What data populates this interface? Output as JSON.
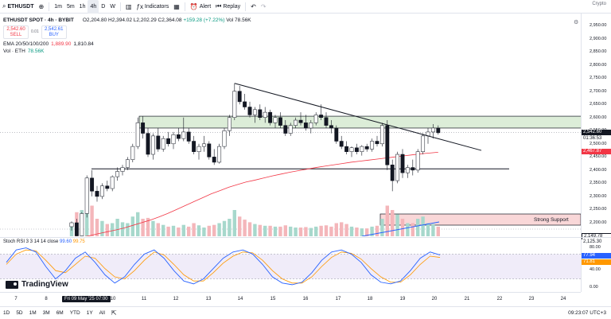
{
  "toolbar": {
    "symbol": "ETHUSDT",
    "intervals": [
      "1m",
      "5m",
      "1h",
      "4h",
      "D",
      "W"
    ],
    "active_interval": "4h",
    "indicators_label": "Indicators",
    "alert_label": "Alert",
    "replay_label": "Replay",
    "brand_right": "Crypto"
  },
  "legend": {
    "title": "ETHUSDT SPOT · 4h · BYBIT",
    "ohlc": "O2,204.80 H2,394.02 L2,202.29 C2,364.08",
    "change": "+159.28 (+7.22%)",
    "volume": "Vol 78.56K",
    "sell_price": "2,542.60",
    "sell_label": "SELL",
    "spread": "0.01",
    "buy_price": "2,542.61",
    "buy_label": "BUY",
    "ema_label": "EMA 20/50/100/200",
    "ema_value_1": "1,889.90",
    "ema_value_2": "1,810.84",
    "vol_label": "Vol · ETH",
    "vol_value": "78.56K"
  },
  "annotations": {
    "strong_support": "Strong Support"
  },
  "price_axis": {
    "ticks": [
      "2,950.00",
      "2,900.00",
      "2,850.00",
      "2,800.00",
      "2,750.00",
      "2,700.00",
      "2,650.00",
      "2,600.00",
      "2,550.00",
      "2,500.00",
      "2,450.00",
      "2,400.00",
      "2,350.00",
      "2,300.00",
      "2,250.00",
      "2,200.00"
    ],
    "last_price": "2,542.60",
    "countdown": "01:36:53",
    "ema_badge": "2,467.87",
    "support_badge": "2,149.78",
    "support_badge_2": "2,125.30"
  },
  "stoch": {
    "legend": "Stoch RSI 3 3 14 14 close",
    "k_value": "99.60",
    "d_value": "99.75",
    "ticks": [
      "80.00",
      "40.00",
      "0.00"
    ],
    "k_badge": "77.94",
    "d_badge": "71.81"
  },
  "time_axis": {
    "labels": [
      "7",
      "8",
      "10",
      "11",
      "12",
      "13",
      "14",
      "15",
      "16",
      "17",
      "18",
      "19",
      "20",
      "21",
      "22",
      "23",
      "24"
    ],
    "crosshair": "Fri 09 May '25  07:00"
  },
  "bottombar": {
    "ranges": [
      "1D",
      "5D",
      "1M",
      "3M",
      "6M",
      "YTD",
      "1Y",
      "All"
    ],
    "clock": "09:23:07 UTC+3"
  },
  "logo_text": "TradingView",
  "colors": {
    "up": "#089981",
    "down": "#f23645",
    "zone_fill": "#dcedd8",
    "support_fill": "#f9d7d8",
    "ema": "#f23645",
    "stoch_k": "#2962ff",
    "stoch_d": "#ff9800"
  },
  "chart_data": {
    "type": "candlestick",
    "ylim": [
      2120,
      2975
    ],
    "candles": [
      {
        "o": 2185,
        "h": 2205,
        "l": 2170,
        "c": 2200,
        "v": 30
      },
      {
        "o": 2200,
        "h": 2215,
        "l": 2140,
        "c": 2150,
        "v": 55
      },
      {
        "o": 2150,
        "h": 2240,
        "l": 2135,
        "c": 2235,
        "v": 60
      },
      {
        "o": 2235,
        "h": 2380,
        "l": 2220,
        "c": 2370,
        "v": 95
      },
      {
        "o": 2370,
        "h": 2400,
        "l": 2300,
        "c": 2320,
        "v": 70
      },
      {
        "o": 2320,
        "h": 2340,
        "l": 2280,
        "c": 2300,
        "v": 40
      },
      {
        "o": 2300,
        "h": 2350,
        "l": 2290,
        "c": 2340,
        "v": 35
      },
      {
        "o": 2340,
        "h": 2360,
        "l": 2320,
        "c": 2330,
        "v": 28
      },
      {
        "o": 2330,
        "h": 2380,
        "l": 2320,
        "c": 2375,
        "v": 30
      },
      {
        "o": 2375,
        "h": 2410,
        "l": 2360,
        "c": 2395,
        "v": 40
      },
      {
        "o": 2395,
        "h": 2420,
        "l": 2380,
        "c": 2410,
        "v": 32
      },
      {
        "o": 2410,
        "h": 2450,
        "l": 2400,
        "c": 2440,
        "v": 30
      },
      {
        "o": 2440,
        "h": 2500,
        "l": 2430,
        "c": 2490,
        "v": 45
      },
      {
        "o": 2490,
        "h": 2600,
        "l": 2480,
        "c": 2580,
        "v": 55
      },
      {
        "o": 2580,
        "h": 2605,
        "l": 2520,
        "c": 2540,
        "v": 40
      },
      {
        "o": 2540,
        "h": 2560,
        "l": 2450,
        "c": 2460,
        "v": 42
      },
      {
        "o": 2460,
        "h": 2540,
        "l": 2440,
        "c": 2530,
        "v": 35
      },
      {
        "o": 2530,
        "h": 2560,
        "l": 2470,
        "c": 2480,
        "v": 30
      },
      {
        "o": 2480,
        "h": 2530,
        "l": 2470,
        "c": 2520,
        "v": 26
      },
      {
        "o": 2520,
        "h": 2545,
        "l": 2490,
        "c": 2500,
        "v": 22
      },
      {
        "o": 2500,
        "h": 2545,
        "l": 2480,
        "c": 2535,
        "v": 24
      },
      {
        "o": 2535,
        "h": 2560,
        "l": 2510,
        "c": 2520,
        "v": 20
      },
      {
        "o": 2520,
        "h": 2600,
        "l": 2510,
        "c": 2545,
        "v": 26
      },
      {
        "o": 2545,
        "h": 2560,
        "l": 2500,
        "c": 2510,
        "v": 22
      },
      {
        "o": 2510,
        "h": 2530,
        "l": 2460,
        "c": 2470,
        "v": 30
      },
      {
        "o": 2470,
        "h": 2500,
        "l": 2440,
        "c": 2490,
        "v": 25
      },
      {
        "o": 2490,
        "h": 2530,
        "l": 2470,
        "c": 2500,
        "v": 20
      },
      {
        "o": 2500,
        "h": 2510,
        "l": 2440,
        "c": 2450,
        "v": 24
      },
      {
        "o": 2450,
        "h": 2480,
        "l": 2420,
        "c": 2430,
        "v": 26
      },
      {
        "o": 2430,
        "h": 2500,
        "l": 2425,
        "c": 2490,
        "v": 30
      },
      {
        "o": 2490,
        "h": 2560,
        "l": 2480,
        "c": 2550,
        "v": 35
      },
      {
        "o": 2550,
        "h": 2610,
        "l": 2530,
        "c": 2600,
        "v": 40
      },
      {
        "o": 2600,
        "h": 2730,
        "l": 2590,
        "c": 2700,
        "v": 60
      },
      {
        "o": 2700,
        "h": 2720,
        "l": 2650,
        "c": 2660,
        "v": 45
      },
      {
        "o": 2660,
        "h": 2690,
        "l": 2630,
        "c": 2640,
        "v": 38
      },
      {
        "o": 2640,
        "h": 2660,
        "l": 2600,
        "c": 2610,
        "v": 32
      },
      {
        "o": 2610,
        "h": 2640,
        "l": 2580,
        "c": 2630,
        "v": 28
      },
      {
        "o": 2630,
        "h": 2650,
        "l": 2590,
        "c": 2600,
        "v": 26
      },
      {
        "o": 2600,
        "h": 2640,
        "l": 2580,
        "c": 2620,
        "v": 24
      },
      {
        "o": 2620,
        "h": 2630,
        "l": 2570,
        "c": 2580,
        "v": 24
      },
      {
        "o": 2580,
        "h": 2610,
        "l": 2560,
        "c": 2600,
        "v": 22
      },
      {
        "o": 2600,
        "h": 2620,
        "l": 2560,
        "c": 2570,
        "v": 22
      },
      {
        "o": 2570,
        "h": 2590,
        "l": 2530,
        "c": 2540,
        "v": 25
      },
      {
        "o": 2540,
        "h": 2580,
        "l": 2530,
        "c": 2570,
        "v": 22
      },
      {
        "o": 2570,
        "h": 2600,
        "l": 2560,
        "c": 2590,
        "v": 20
      },
      {
        "o": 2590,
        "h": 2620,
        "l": 2570,
        "c": 2580,
        "v": 20
      },
      {
        "o": 2580,
        "h": 2610,
        "l": 2550,
        "c": 2560,
        "v": 21
      },
      {
        "o": 2560,
        "h": 2590,
        "l": 2540,
        "c": 2580,
        "v": 19
      },
      {
        "o": 2580,
        "h": 2620,
        "l": 2570,
        "c": 2610,
        "v": 22
      },
      {
        "o": 2610,
        "h": 2650,
        "l": 2590,
        "c": 2600,
        "v": 24
      },
      {
        "o": 2600,
        "h": 2620,
        "l": 2560,
        "c": 2570,
        "v": 25
      },
      {
        "o": 2570,
        "h": 2590,
        "l": 2540,
        "c": 2560,
        "v": 22
      },
      {
        "o": 2560,
        "h": 2570,
        "l": 2500,
        "c": 2510,
        "v": 30
      },
      {
        "o": 2510,
        "h": 2530,
        "l": 2480,
        "c": 2490,
        "v": 32
      },
      {
        "o": 2490,
        "h": 2510,
        "l": 2460,
        "c": 2470,
        "v": 28
      },
      {
        "o": 2470,
        "h": 2490,
        "l": 2450,
        "c": 2485,
        "v": 22
      },
      {
        "o": 2485,
        "h": 2500,
        "l": 2460,
        "c": 2470,
        "v": 20
      },
      {
        "o": 2470,
        "h": 2495,
        "l": 2455,
        "c": 2490,
        "v": 18
      },
      {
        "o": 2490,
        "h": 2500,
        "l": 2470,
        "c": 2480,
        "v": 18
      },
      {
        "o": 2480,
        "h": 2520,
        "l": 2470,
        "c": 2510,
        "v": 22
      },
      {
        "o": 2510,
        "h": 2530,
        "l": 2490,
        "c": 2500,
        "v": 24
      },
      {
        "o": 2500,
        "h": 2580,
        "l": 2490,
        "c": 2570,
        "v": 40
      },
      {
        "o": 2570,
        "h": 2590,
        "l": 2400,
        "c": 2420,
        "v": 70
      },
      {
        "o": 2420,
        "h": 2440,
        "l": 2320,
        "c": 2360,
        "v": 60
      },
      {
        "o": 2360,
        "h": 2470,
        "l": 2350,
        "c": 2460,
        "v": 50
      },
      {
        "o": 2460,
        "h": 2480,
        "l": 2370,
        "c": 2390,
        "v": 40
      },
      {
        "o": 2390,
        "h": 2420,
        "l": 2370,
        "c": 2410,
        "v": 30
      },
      {
        "o": 2410,
        "h": 2440,
        "l": 2380,
        "c": 2400,
        "v": 30
      },
      {
        "o": 2400,
        "h": 2480,
        "l": 2390,
        "c": 2470,
        "v": 40
      },
      {
        "o": 2470,
        "h": 2540,
        "l": 2460,
        "c": 2530,
        "v": 45
      },
      {
        "o": 2530,
        "h": 2560,
        "l": 2500,
        "c": 2545,
        "v": 30
      },
      {
        "o": 2545,
        "h": 2575,
        "l": 2520,
        "c": 2560,
        "v": 28
      },
      {
        "o": 2560,
        "h": 2570,
        "l": 2535,
        "c": 2542,
        "v": 22
      }
    ],
    "zone_top": [
      2560,
      2605
    ],
    "support_line": 2405,
    "trendline": [
      {
        "i": 32,
        "p": 2730
      },
      {
        "i": 80,
        "p": 2500
      }
    ],
    "ema_line": [
      2140,
      2145,
      2150,
      2158,
      2165,
      2172,
      2180,
      2190,
      2200,
      2210,
      2222,
      2235,
      2250,
      2265,
      2280,
      2295,
      2310,
      2322,
      2335,
      2345,
      2355,
      2362,
      2370,
      2378,
      2385,
      2392,
      2398,
      2404,
      2410,
      2415,
      2420,
      2425,
      2430,
      2434,
      2438,
      2442,
      2446,
      2450,
      2454,
      2458,
      2462,
      2465,
      2468
    ],
    "stoch_k": [
      60,
      90,
      95,
      85,
      50,
      20,
      40,
      70,
      85,
      60,
      30,
      10,
      25,
      55,
      80,
      90,
      70,
      40,
      15,
      8,
      20,
      45,
      70,
      85,
      90,
      80,
      55,
      25,
      10,
      6,
      12,
      35,
      65,
      85,
      90,
      80,
      60,
      30,
      12,
      8,
      15,
      40,
      70,
      85,
      78
    ],
    "stoch_d": [
      55,
      80,
      90,
      88,
      65,
      40,
      35,
      55,
      75,
      70,
      45,
      25,
      20,
      40,
      65,
      85,
      78,
      55,
      30,
      15,
      15,
      35,
      58,
      75,
      85,
      83,
      65,
      40,
      20,
      10,
      10,
      25,
      50,
      72,
      85,
      82,
      68,
      45,
      25,
      12,
      12,
      30,
      55,
      75,
      72
    ]
  }
}
